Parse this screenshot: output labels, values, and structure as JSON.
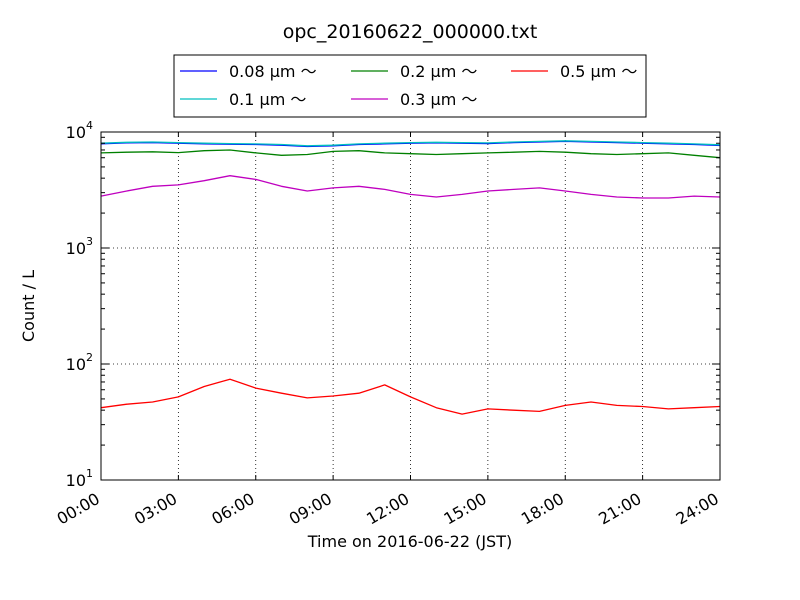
{
  "chart_data": {
    "type": "line",
    "title": "opc_20160622_000000.txt",
    "xlabel": "Time on 2016-06-22 (JST)",
    "ylabel": "Count / L",
    "xlim": [
      "00:00",
      "24:00"
    ],
    "ylim": [
      10,
      10000
    ],
    "yscale": "log",
    "grid": true,
    "legend_position": "top-center, outside plot",
    "x_ticks": [
      "00:00",
      "03:00",
      "06:00",
      "09:00",
      "12:00",
      "15:00",
      "18:00",
      "21:00",
      "24:00"
    ],
    "y_ticks": [
      {
        "base": "10",
        "exp": "1"
      },
      {
        "base": "10",
        "exp": "2"
      },
      {
        "base": "10",
        "exp": "3"
      },
      {
        "base": "10",
        "exp": "4"
      }
    ],
    "x": [
      "00:00",
      "01:00",
      "02:00",
      "03:00",
      "04:00",
      "05:00",
      "06:00",
      "07:00",
      "08:00",
      "09:00",
      "10:00",
      "11:00",
      "12:00",
      "13:00",
      "14:00",
      "15:00",
      "16:00",
      "17:00",
      "18:00",
      "19:00",
      "20:00",
      "21:00",
      "22:00",
      "23:00",
      "24:00"
    ],
    "series": [
      {
        "name": "0.08 μm ～",
        "color": "#0000ff",
        "values": [
          7900,
          8050,
          8100,
          8000,
          7900,
          7850,
          7800,
          7700,
          7500,
          7600,
          7800,
          7900,
          8000,
          8050,
          8000,
          7950,
          8100,
          8200,
          8300,
          8200,
          8100,
          8000,
          7900,
          7800,
          7650
        ]
      },
      {
        "name": "0.1 μm ～",
        "color": "#00bfbf",
        "values": [
          8000,
          8150,
          8200,
          8100,
          8000,
          7950,
          7900,
          7800,
          7600,
          7700,
          7900,
          8000,
          8100,
          8150,
          8100,
          8050,
          8200,
          8300,
          8400,
          8300,
          8200,
          8100,
          8000,
          7900,
          7750
        ]
      },
      {
        "name": "0.2 μm ～",
        "color": "#008000",
        "values": [
          6600,
          6700,
          6750,
          6650,
          6900,
          7000,
          6600,
          6300,
          6400,
          6800,
          6900,
          6600,
          6500,
          6400,
          6500,
          6600,
          6700,
          6800,
          6700,
          6500,
          6400,
          6500,
          6600,
          6300,
          6000
        ]
      },
      {
        "name": "0.3 μm ～",
        "color": "#bf00bf",
        "values": [
          2800,
          3100,
          3400,
          3500,
          3800,
          4200,
          3900,
          3400,
          3100,
          3300,
          3400,
          3200,
          2900,
          2750,
          2900,
          3100,
          3200,
          3300,
          3100,
          2900,
          2750,
          2700,
          2700,
          2800,
          2750
        ]
      },
      {
        "name": "0.5 μm ～",
        "color": "#ff0000",
        "values": [
          42,
          45,
          47,
          52,
          64,
          74,
          62,
          56,
          51,
          53,
          56,
          66,
          52,
          42,
          37,
          41,
          40,
          39,
          44,
          47,
          44,
          43,
          41,
          42,
          43
        ]
      }
    ]
  }
}
